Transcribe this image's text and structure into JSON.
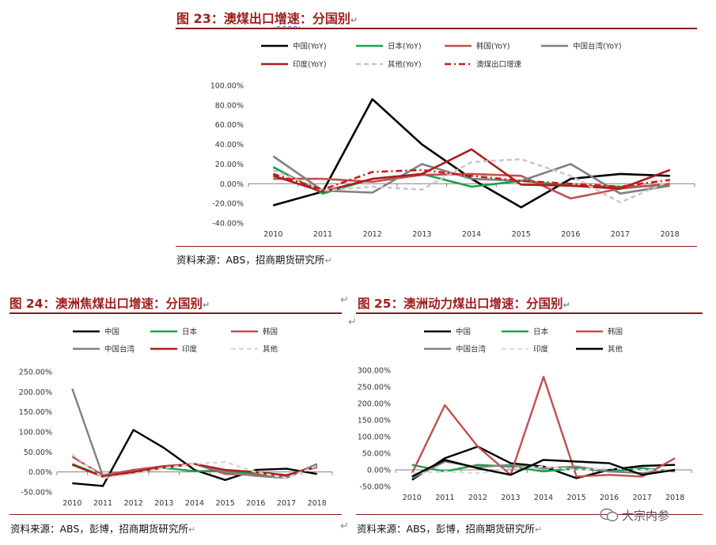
{
  "figures": [
    {
      "label": "图 23：",
      "title_plain": "澳煤出口",
      "title_wavy": "增速",
      "title_suffix": "：分国别",
      "ret": "↵",
      "source": "资料来源：ABS，招商期货研究所",
      "source_ret": "↵"
    },
    {
      "label": "图 24：",
      "title": "澳洲焦煤出口增速：分国别",
      "ret": "↵",
      "source": "资料来源：ABS，彭博，招商期货研究所",
      "source_ret": "↵"
    },
    {
      "label": "图 25：",
      "title": "澳洲动力煤出口增速：分国别",
      "ret": "↵",
      "source": "资料来源：ABS，彭博，招商期货研究所",
      "source_ret": "↵"
    }
  ],
  "stray_marks": [
    "↵",
    "↵",
    "↵"
  ],
  "watermark": "大宗内参",
  "chart_data": [
    {
      "type": "line",
      "title": "",
      "x": [
        "2010",
        "2011",
        "2012",
        "2013",
        "2014",
        "2015",
        "2016",
        "2017",
        "2018"
      ],
      "ylim": [
        -40,
        100
      ],
      "ytick_step": 20,
      "y_tick_labels": [
        "-40.00%",
        "-20.00%",
        "0.00%",
        "20.00%",
        "40.00%",
        "60.00%",
        "80.00%",
        "100.00%"
      ],
      "legend_position": "top",
      "series": [
        {
          "name": "中国(YoY)",
          "color": "#000000",
          "dash": "solid",
          "values": [
            -22,
            -8,
            86,
            40,
            5,
            -24,
            5,
            10,
            8
          ]
        },
        {
          "name": "日本(YoY)",
          "color": "#1aa24a",
          "dash": "solid",
          "values": [
            17,
            -10,
            5,
            10,
            -3,
            3,
            -2,
            -3,
            -2
          ]
        },
        {
          "name": "韩国(YoY)",
          "color": "#c0504d",
          "dash": "solid",
          "values": [
            5,
            5,
            2,
            9,
            10,
            8,
            -15,
            -5,
            0
          ]
        },
        {
          "name": "中国台湾(YoY)",
          "color": "#808080",
          "dash": "solid",
          "values": [
            28,
            -7,
            -9,
            20,
            5,
            3,
            20,
            -10,
            -2
          ]
        },
        {
          "name": "印度(YoY)",
          "color": "#b01c1c",
          "dash": "solid",
          "values": [
            8,
            -8,
            5,
            10,
            35,
            -1,
            -2,
            -5,
            14
          ]
        },
        {
          "name": "其他(YoY)",
          "color": "#c8c8c8",
          "dash": "dash",
          "values": [
            14,
            -7,
            -3,
            -6,
            22,
            25,
            8,
            -19,
            3
          ]
        },
        {
          "name": "澳煤出口增速",
          "color": "#d01818",
          "dash": "dashdot",
          "values": [
            10,
            -6,
            12,
            14,
            8,
            3,
            0,
            -3,
            4
          ]
        }
      ]
    },
    {
      "type": "line",
      "title": "",
      "x": [
        "2010",
        "2011",
        "2012",
        "2013",
        "2014",
        "2015",
        "2016",
        "2017",
        "2018"
      ],
      "ylim": [
        -50,
        250
      ],
      "ytick_step": 50,
      "y_tick_labels": [
        "-50.00%",
        "0.00%",
        "50.00%",
        "100.00%",
        "150.00%",
        "200.00%",
        "250.00%"
      ],
      "legend_position": "top",
      "series": [
        {
          "name": "中国",
          "color": "#000000",
          "dash": "solid",
          "values": [
            -28,
            -35,
            105,
            60,
            5,
            -20,
            5,
            8,
            -5
          ]
        },
        {
          "name": "日本",
          "color": "#1aa24a",
          "dash": "solid",
          "values": [
            20,
            -10,
            5,
            10,
            2,
            3,
            -5,
            -12,
            15
          ]
        },
        {
          "name": "韩国",
          "color": "#c0504d",
          "dash": "solid",
          "values": [
            38,
            -8,
            5,
            15,
            20,
            -5,
            -8,
            -10,
            18
          ]
        },
        {
          "name": "中国台湾",
          "color": "#808080",
          "dash": "solid",
          "values": [
            208,
            -10,
            -2,
            10,
            20,
            0,
            -10,
            -15,
            20
          ]
        },
        {
          "name": "印度",
          "color": "#b01c1c",
          "dash": "solid",
          "values": [
            18,
            -12,
            0,
            12,
            20,
            5,
            0,
            -8,
            12
          ]
        },
        {
          "name": "其他",
          "color": "#d9d9d9",
          "dash": "dash",
          "values": [
            45,
            -15,
            -5,
            10,
            20,
            25,
            0,
            -15,
            15
          ]
        }
      ]
    },
    {
      "type": "line",
      "title": "",
      "x": [
        "2010",
        "2011",
        "2012",
        "2013",
        "2014",
        "2015",
        "2016",
        "2017",
        "2018"
      ],
      "ylim": [
        -50,
        300
      ],
      "ytick_step": 50,
      "y_tick_labels": [
        "-50.00%",
        "0.00%",
        "50.00%",
        "100.00%",
        "150.00%",
        "200.00%",
        "250.00%",
        "300.00%"
      ],
      "legend_position": "top",
      "series": [
        {
          "name": "中国",
          "color": "#000000",
          "dash": "solid",
          "values": [
            -30,
            35,
            70,
            20,
            10,
            -25,
            0,
            12,
            15
          ]
        },
        {
          "name": "日本",
          "color": "#1aa24a",
          "dash": "solid",
          "values": [
            15,
            -5,
            15,
            10,
            -5,
            5,
            -5,
            5,
            -5
          ]
        },
        {
          "name": "韩国",
          "color": "#c0504d",
          "dash": "solid",
          "values": [
            -10,
            195,
            70,
            -15,
            280,
            -20,
            -15,
            -20,
            35
          ]
        },
        {
          "name": "中国台湾",
          "color": "#808080",
          "dash": "solid",
          "values": [
            -25,
            25,
            8,
            15,
            5,
            10,
            -5,
            -10,
            0
          ]
        },
        {
          "name": "印度",
          "color": "#dcdcdc",
          "dash": "dash",
          "values": [
            -10,
            -5,
            -10,
            5,
            10,
            0,
            5,
            0,
            0
          ]
        },
        {
          "name": "其他",
          "color": "#000000",
          "dash": "solid",
          "values": [
            -20,
            30,
            5,
            -15,
            30,
            25,
            20,
            -15,
            0
          ]
        }
      ]
    }
  ]
}
